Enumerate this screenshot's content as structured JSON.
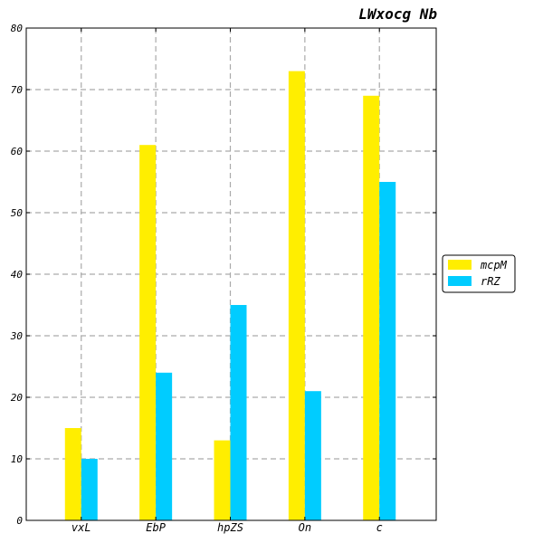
{
  "chart_data": {
    "type": "bar",
    "title": "LWxocg Nb",
    "categories": [
      "vxL",
      "EbP",
      "hpZS",
      "On",
      "c"
    ],
    "series": [
      {
        "name": "mcpM",
        "values": [
          15,
          61,
          13,
          73,
          69
        ],
        "color": "#ffee00"
      },
      {
        "name": "rRZ",
        "values": [
          10,
          24,
          35,
          21,
          55
        ],
        "color": "#00ccff"
      }
    ],
    "ylim": [
      0,
      80
    ],
    "yticks": [
      0,
      10,
      20,
      30,
      40,
      50,
      60,
      70,
      80
    ],
    "grid": true,
    "legend_position": "right"
  }
}
